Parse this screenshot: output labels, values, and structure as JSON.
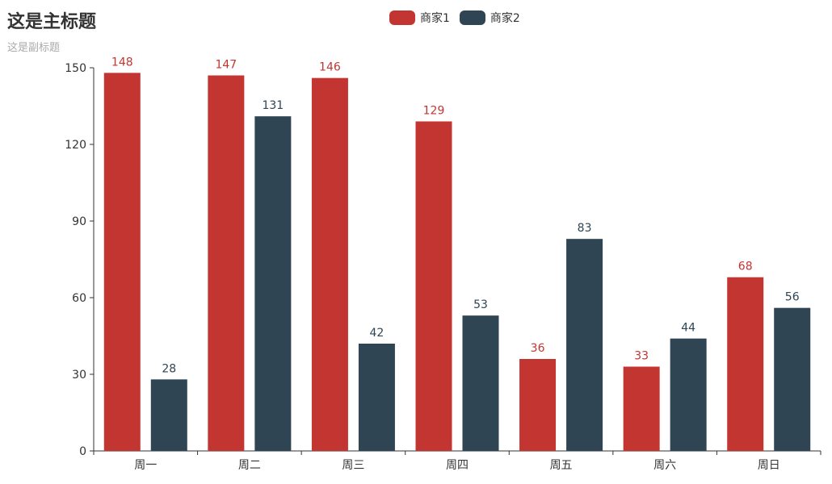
{
  "chart_data": {
    "type": "bar",
    "title": "这是主标题",
    "subtitle": "这是副标题",
    "categories": [
      "周一",
      "周二",
      "周三",
      "周四",
      "周五",
      "周六",
      "周日"
    ],
    "series": [
      {
        "name": "商家1",
        "values": [
          148,
          147,
          146,
          129,
          36,
          33,
          68
        ],
        "color": "#c23531"
      },
      {
        "name": "商家2",
        "values": [
          28,
          131,
          42,
          53,
          83,
          44,
          56
        ],
        "color": "#2f4554"
      }
    ],
    "ylim": [
      0,
      150
    ],
    "yticks": [
      0,
      30,
      60,
      90,
      120,
      150
    ],
    "xlabel": "",
    "ylabel": "",
    "grid": false,
    "legend_position": "top-center",
    "data_labels": true,
    "axis_color": "#333333"
  }
}
